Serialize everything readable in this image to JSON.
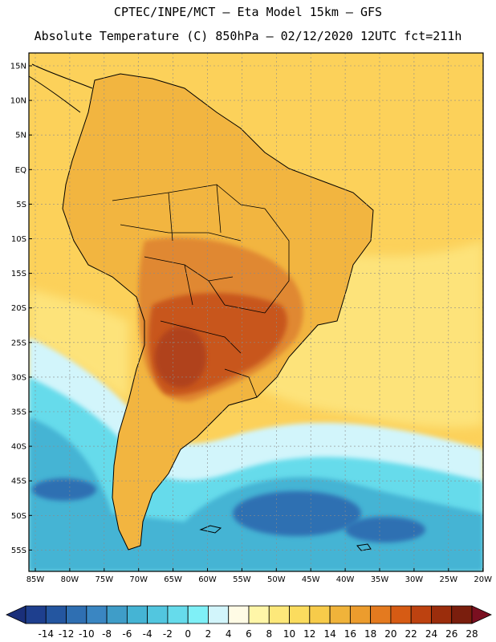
{
  "title_line1": "CPTEC/INPE/MCT –  Eta Model 15km – GFS",
  "title_line2": "Absolute Temperature (C) 850hPa – 02/12/2020 12UTC fct=211h",
  "lat_labels": [
    "15N",
    "10N",
    "5N",
    "EQ",
    "5S",
    "10S",
    "15S",
    "20S",
    "25S",
    "30S",
    "35S",
    "40S",
    "45S",
    "50S",
    "55S"
  ],
  "lon_labels": [
    "85W",
    "80W",
    "75W",
    "70W",
    "65W",
    "60W",
    "55W",
    "50W",
    "45W",
    "40W",
    "35W",
    "30W",
    "25W",
    "20W"
  ],
  "colorbar": {
    "ticks": [
      "-14",
      "-12",
      "-10",
      "-8",
      "-6",
      "-4",
      "-2",
      "0",
      "2",
      "4",
      "6",
      "8",
      "10",
      "12",
      "14",
      "16",
      "18",
      "20",
      "22",
      "24",
      "26",
      "28"
    ],
    "colors": [
      "#1e3f8e",
      "#2456a0",
      "#2f6fb2",
      "#3a86c2",
      "#3f9dc8",
      "#45b4d4",
      "#52c6df",
      "#66dbeb",
      "#7ff0f7",
      "#d2f5fb",
      "#fffbe5",
      "#fff6a8",
      "#fde87a",
      "#fbdc5e",
      "#f7cb4a",
      "#f0b33a",
      "#ec9c2d",
      "#e47a1f",
      "#d65b14",
      "#bd4210",
      "#9b2d0c",
      "#7a1e0d"
    ],
    "low_color": "#1a2f7a",
    "high_color": "#7a0f20"
  },
  "colors": {
    "ocean_tropical": "#fcd15a",
    "ocean_warm": "#fde37a",
    "land_hot": "#f2b540",
    "land_hotter": "#e08830",
    "land_max": "#c8561d",
    "land_peak": "#b0421a",
    "cold_light": "#d2f5fb",
    "cold_cyan": "#66dbeb",
    "cold_mid": "#45b4d4",
    "cold_deep": "#2f6fb2",
    "coast": "#000000",
    "grid": "#8a8a8a"
  }
}
